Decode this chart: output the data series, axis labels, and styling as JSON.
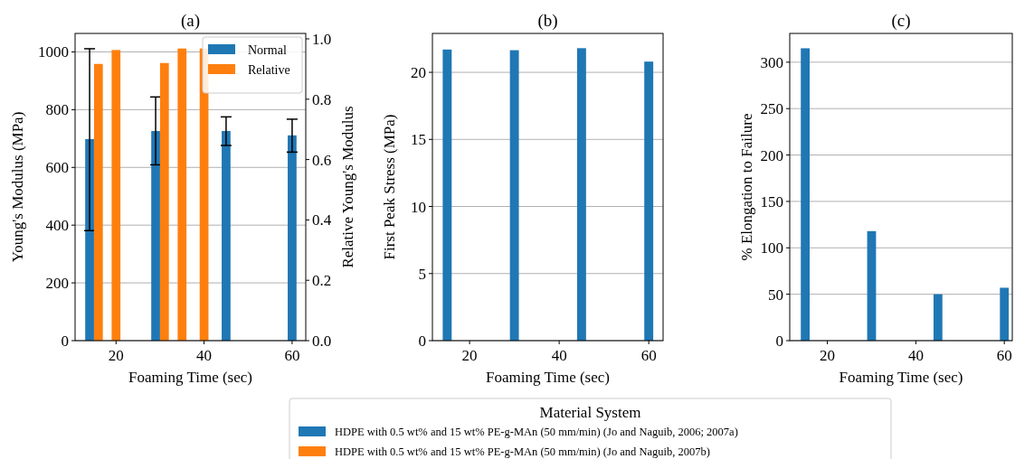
{
  "chart_data": [
    {
      "type": "bar",
      "title": "(a)",
      "xlabel": "Foaming Time (sec)",
      "ylabel": "Young's Modulus (MPa)",
      "y2label": "Relative Young's Modulus",
      "xlim": [
        10.7,
        63.1
      ],
      "xticks": [
        20,
        40,
        60
      ],
      "ylim": [
        0,
        1064
      ],
      "yticks": [
        0,
        200,
        400,
        600,
        800,
        1000
      ],
      "y2lim": [
        0,
        1.018
      ],
      "y2ticks": [
        {
          "value": 0,
          "label": "0.0"
        },
        {
          "value": 0.2,
          "label": "0.2"
        },
        {
          "value": 0.4,
          "label": "0.4"
        },
        {
          "value": 0.6,
          "label": "0.6"
        },
        {
          "value": 0.8,
          "label": "0.8"
        },
        {
          "value": 1,
          "label": "1.0"
        }
      ],
      "grid": "y",
      "legend": "top right",
      "series": [
        {
          "name": "Normal",
          "color": "#1f77b4",
          "x": [
            14,
            29,
            45,
            60
          ],
          "values": [
            698,
            726,
            726,
            711
          ],
          "errors": [
            [
              381,
              1011
            ],
            [
              609,
              844
            ],
            [
              676,
              775
            ],
            [
              653,
              767
            ]
          ]
        },
        {
          "name": "Relative",
          "color": "#ff7f0e",
          "axis": "y2",
          "x": [
            16,
            20,
            31,
            35,
            40
          ],
          "values": [
            0.917,
            0.963,
            0.92,
            0.968,
            0.968
          ]
        }
      ]
    },
    {
      "type": "bar",
      "title": "(b)",
      "xlabel": "Foaming Time (sec)",
      "ylabel": "First Peak Stress (MPa)",
      "xlim": [
        11.7,
        63.2
      ],
      "xticks": [
        20,
        40,
        60
      ],
      "ylim": [
        0,
        22.9
      ],
      "yticks": [
        0,
        5,
        10,
        15,
        20
      ],
      "grid": "y",
      "series": [
        {
          "color": "#1f77b4",
          "x": [
            15,
            30,
            45,
            60
          ],
          "values": [
            21.7,
            21.65,
            21.8,
            20.8
          ]
        }
      ]
    },
    {
      "type": "bar",
      "title": "(c)",
      "xlabel": "Foaming Time (sec)",
      "ylabel": "% Elongation to Failure",
      "xlim": [
        11.5,
        61.8
      ],
      "xticks": [
        20,
        40,
        60
      ],
      "ylim": [
        0,
        331
      ],
      "yticks": [
        0,
        50,
        100,
        150,
        200,
        250,
        300
      ],
      "grid": "y",
      "series": [
        {
          "color": "#1f77b4",
          "x": [
            15,
            30,
            45,
            60
          ],
          "values": [
            315,
            118,
            50,
            57
          ]
        }
      ]
    },
    {
      "type": "other",
      "title": "Material System",
      "annotations": [
        "HDPE with 0.5 wt% and 15 wt% PE-g-MAn (50 mm/min) (Jo and Naguib, 2006; 2007a)",
        "HDPE with 0.5 wt% and 15 wt% PE-g-MAn (50 mm/min) (Jo and Naguib, 2007b)"
      ],
      "colors": [
        "#1f77b4",
        "#ff7f0e"
      ]
    }
  ]
}
